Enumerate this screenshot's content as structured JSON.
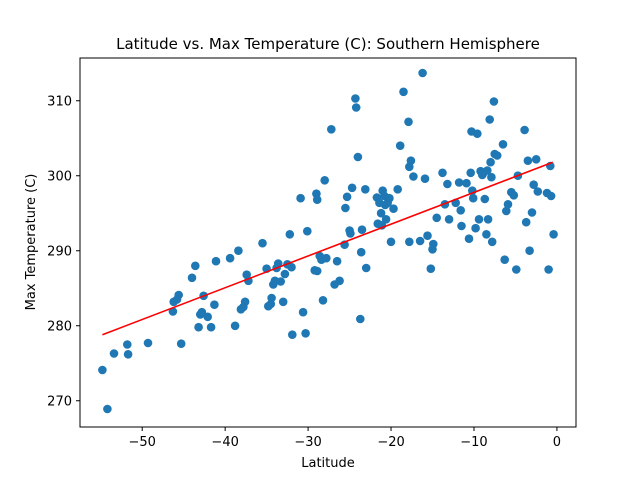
{
  "chart_data": {
    "type": "scatter",
    "title": "Latitude vs. Max Temperature (C): Southern Hemisphere",
    "xlabel": "Latitude",
    "ylabel": "Max Temperature (C)",
    "xlim": [
      -57.5,
      2.3
    ],
    "ylim": [
      266.5,
      315.7
    ],
    "x_ticks": [
      -50,
      -40,
      -30,
      -20,
      -10,
      0
    ],
    "y_ticks": [
      270,
      280,
      290,
      300,
      310
    ],
    "grid": false,
    "legend": "none",
    "colors": {
      "points": "#1f77b4",
      "trendline": "#ff0000",
      "trendline_edge": "#cc0000"
    },
    "trendline": {
      "x": [
        -54.8,
        -0.5
      ],
      "y": [
        278.8,
        301.8
      ]
    },
    "points": [
      [
        -54.8,
        274.1
      ],
      [
        -54.2,
        268.9
      ],
      [
        -53.4,
        276.3
      ],
      [
        -51.8,
        277.5
      ],
      [
        -51.7,
        276.2
      ],
      [
        -49.3,
        277.7
      ],
      [
        -46.3,
        281.9
      ],
      [
        -46.2,
        283.2
      ],
      [
        -45.8,
        283.5
      ],
      [
        -45.6,
        284.1
      ],
      [
        -45.3,
        277.6
      ],
      [
        -44.0,
        286.4
      ],
      [
        -43.6,
        288.0
      ],
      [
        -43.2,
        279.8
      ],
      [
        -43.0,
        281.5
      ],
      [
        -42.8,
        281.8
      ],
      [
        -42.6,
        284.0
      ],
      [
        -42.1,
        281.2
      ],
      [
        -41.7,
        279.8
      ],
      [
        -41.3,
        282.8
      ],
      [
        -41.1,
        288.6
      ],
      [
        -39.4,
        289.0
      ],
      [
        -38.8,
        280.0
      ],
      [
        -38.4,
        290.0
      ],
      [
        -38.1,
        282.2
      ],
      [
        -37.8,
        282.5
      ],
      [
        -37.6,
        283.2
      ],
      [
        -37.4,
        286.8
      ],
      [
        -37.2,
        286.0
      ],
      [
        -35.5,
        291.0
      ],
      [
        -35.0,
        287.6
      ],
      [
        -34.8,
        282.6
      ],
      [
        -34.5,
        282.9
      ],
      [
        -34.4,
        283.7
      ],
      [
        -34.2,
        285.5
      ],
      [
        -34.0,
        286.0
      ],
      [
        -33.8,
        287.7
      ],
      [
        -33.6,
        288.3
      ],
      [
        -33.3,
        285.9
      ],
      [
        -33.0,
        283.2
      ],
      [
        -32.8,
        286.9
      ],
      [
        -32.5,
        288.2
      ],
      [
        -32.2,
        292.2
      ],
      [
        -32.0,
        287.8
      ],
      [
        -31.9,
        278.8
      ],
      [
        -30.9,
        297.0
      ],
      [
        -30.6,
        281.8
      ],
      [
        -30.3,
        279.0
      ],
      [
        -30.1,
        292.6
      ],
      [
        -29.2,
        287.4
      ],
      [
        -29.0,
        297.6
      ],
      [
        -28.9,
        287.3
      ],
      [
        -28.9,
        296.8
      ],
      [
        -28.6,
        289.3
      ],
      [
        -28.2,
        283.4
      ],
      [
        -28.4,
        288.8
      ],
      [
        -28.0,
        299.4
      ],
      [
        -27.8,
        289.0
      ],
      [
        -27.2,
        306.2
      ],
      [
        -26.8,
        285.5
      ],
      [
        -26.5,
        288.6
      ],
      [
        -26.2,
        286.0
      ],
      [
        -25.6,
        290.8
      ],
      [
        -25.5,
        295.7
      ],
      [
        -25.3,
        297.2
      ],
      [
        -25.0,
        292.7
      ],
      [
        -24.9,
        292.3
      ],
      [
        -24.7,
        298.4
      ],
      [
        -24.3,
        310.3
      ],
      [
        -24.2,
        309.1
      ],
      [
        -24.0,
        302.5
      ],
      [
        -23.7,
        280.9
      ],
      [
        -23.5,
        292.8
      ],
      [
        -23.6,
        289.8
      ],
      [
        -23.1,
        298.2
      ],
      [
        -23.0,
        287.7
      ],
      [
        -21.7,
        297.1
      ],
      [
        -21.6,
        293.6
      ],
      [
        -21.4,
        296.4
      ],
      [
        -21.2,
        295.0
      ],
      [
        -21.1,
        293.4
      ],
      [
        -21.0,
        298.0
      ],
      [
        -20.8,
        297.3
      ],
      [
        -20.7,
        296.1
      ],
      [
        -20.6,
        294.2
      ],
      [
        -20.4,
        296.4
      ],
      [
        -20.2,
        297.0
      ],
      [
        -20.0,
        291.2
      ],
      [
        -19.7,
        295.6
      ],
      [
        -19.2,
        298.2
      ],
      [
        -18.9,
        304.0
      ],
      [
        -18.5,
        311.2
      ],
      [
        -17.9,
        307.2
      ],
      [
        -17.8,
        291.2
      ],
      [
        -17.6,
        302.0
      ],
      [
        -17.8,
        301.2
      ],
      [
        -17.3,
        299.9
      ],
      [
        -16.5,
        291.3
      ],
      [
        -16.2,
        313.7
      ],
      [
        -15.9,
        299.6
      ],
      [
        -15.6,
        292.0
      ],
      [
        -15.2,
        287.6
      ],
      [
        -15.0,
        290.2
      ],
      [
        -14.9,
        290.9
      ],
      [
        -14.5,
        294.4
      ],
      [
        -13.8,
        300.4
      ],
      [
        -13.5,
        296.2
      ],
      [
        -13.2,
        298.9
      ],
      [
        -13.0,
        294.2
      ],
      [
        -12.2,
        296.4
      ],
      [
        -11.8,
        299.1
      ],
      [
        -11.6,
        295.4
      ],
      [
        -11.5,
        293.3
      ],
      [
        -10.9,
        299.0
      ],
      [
        -10.6,
        291.6
      ],
      [
        -10.2,
        298.0
      ],
      [
        -10.4,
        300.4
      ],
      [
        -10.3,
        305.9
      ],
      [
        -10.1,
        297.0
      ],
      [
        -9.8,
        293.0
      ],
      [
        -9.6,
        305.6
      ],
      [
        -9.4,
        294.2
      ],
      [
        -9.2,
        300.6
      ],
      [
        -9.0,
        300.1
      ],
      [
        -8.9,
        300.3
      ],
      [
        -8.7,
        296.9
      ],
      [
        -8.5,
        292.2
      ],
      [
        -8.4,
        300.7
      ],
      [
        -8.3,
        294.2
      ],
      [
        -8.1,
        307.5
      ],
      [
        -8.0,
        301.8
      ],
      [
        -7.8,
        291.2
      ],
      [
        -7.9,
        299.8
      ],
      [
        -7.5,
        302.9
      ],
      [
        -7.6,
        309.9
      ],
      [
        -7.2,
        302.7
      ],
      [
        -6.5,
        304.2
      ],
      [
        -6.3,
        288.8
      ],
      [
        -6.1,
        295.3
      ],
      [
        -5.9,
        296.2
      ],
      [
        -5.5,
        297.8
      ],
      [
        -5.2,
        297.4
      ],
      [
        -4.9,
        287.5
      ],
      [
        -4.7,
        300.0
      ],
      [
        -3.9,
        306.1
      ],
      [
        -3.7,
        293.8
      ],
      [
        -3.5,
        302.0
      ],
      [
        -3.3,
        290.0
      ],
      [
        -3.0,
        295.1
      ],
      [
        -2.8,
        298.8
      ],
      [
        -2.5,
        302.2
      ],
      [
        -2.3,
        297.9
      ],
      [
        -1.2,
        297.7
      ],
      [
        -1.0,
        287.5
      ],
      [
        -0.7,
        297.3
      ],
      [
        -0.8,
        301.3
      ],
      [
        -0.4,
        292.2
      ]
    ]
  }
}
